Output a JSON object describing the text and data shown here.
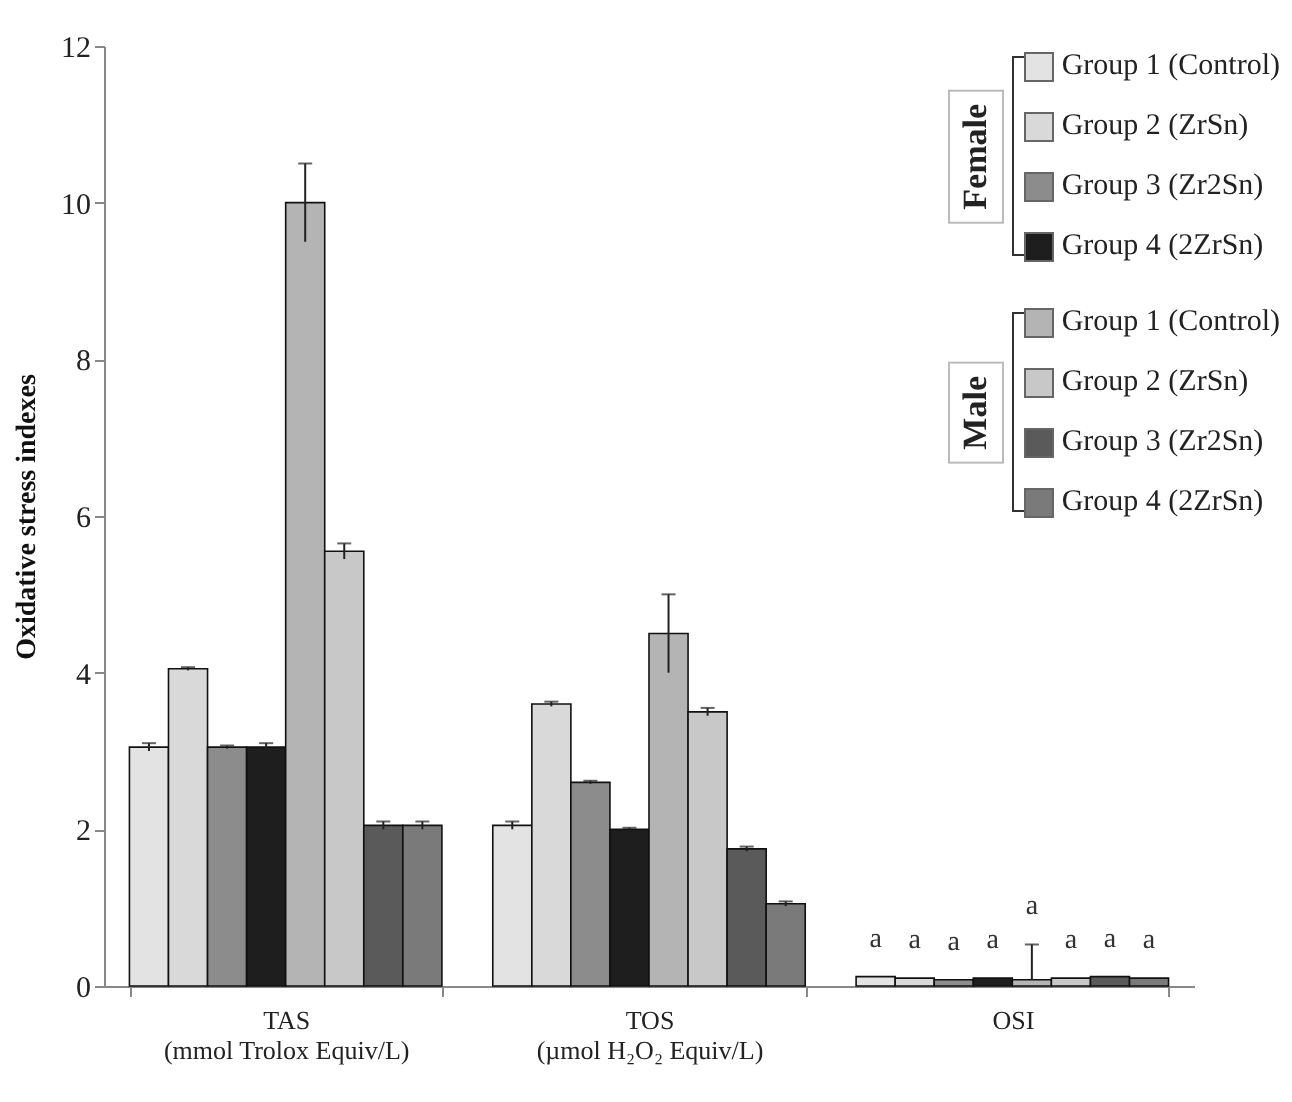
{
  "chart_data": {
    "type": "bar",
    "ylabel": "Oxidative stress indexes",
    "categories": [
      "TAS (mmol Trolox Equiv/L)",
      "TOS (µmol H₂O₂ Equiv/L)",
      "OSI"
    ],
    "ylim": [
      0,
      12
    ],
    "yticks": [
      0,
      2,
      4,
      6,
      8,
      10,
      12
    ],
    "grid": false,
    "legend": "top right",
    "series": [
      {
        "name": "Group 1 (Control)",
        "color": "#e3e3e3",
        "values": [
          3.05,
          2.05,
          0.12
        ],
        "errors": [
          0.05,
          0.05,
          null
        ]
      },
      {
        "name": "Group 2 (ZrSn)",
        "color": "#d9d9d9",
        "values": [
          4.05,
          3.6,
          0.1
        ],
        "errors": [
          0.02,
          0.03,
          null
        ]
      },
      {
        "name": "Group 3 (Zr2Sn)",
        "color": "#8c8c8c",
        "values": [
          3.05,
          2.6,
          0.08
        ],
        "errors": [
          0.02,
          0.02,
          null
        ]
      },
      {
        "name": "Group 4 (2ZrSn)",
        "color": "#1e1e1e",
        "values": [
          3.05,
          2.0,
          0.1
        ],
        "errors": [
          0.05,
          0.02,
          null
        ]
      },
      {
        "name": "Group 1 (Control)",
        "color": "#b4b4b4",
        "values": [
          10.0,
          4.5,
          0.08
        ],
        "errors": [
          0.5,
          0.5,
          [
            0.08,
            0.53
          ]
        ]
      },
      {
        "name": "Group 2 (ZrSn)",
        "color": "#c8c8c8",
        "values": [
          5.55,
          3.5,
          0.1
        ],
        "errors": [
          0.1,
          0.05,
          null
        ]
      },
      {
        "name": "Group 3 (Zr2Sn)",
        "color": "#5a5a5a",
        "values": [
          2.05,
          1.75,
          0.12
        ],
        "errors": [
          0.05,
          0.03,
          null
        ]
      },
      {
        "name": "Group 4 (2ZrSn)",
        "color": "#7a7a7a",
        "values": [
          2.05,
          1.05,
          0.1
        ],
        "errors": [
          0.05,
          0.03,
          null
        ]
      }
    ],
    "annotations": [
      "Female",
      "Male",
      "a",
      "a",
      "a",
      "a",
      "a",
      "a",
      "a",
      "a"
    ]
  }
}
